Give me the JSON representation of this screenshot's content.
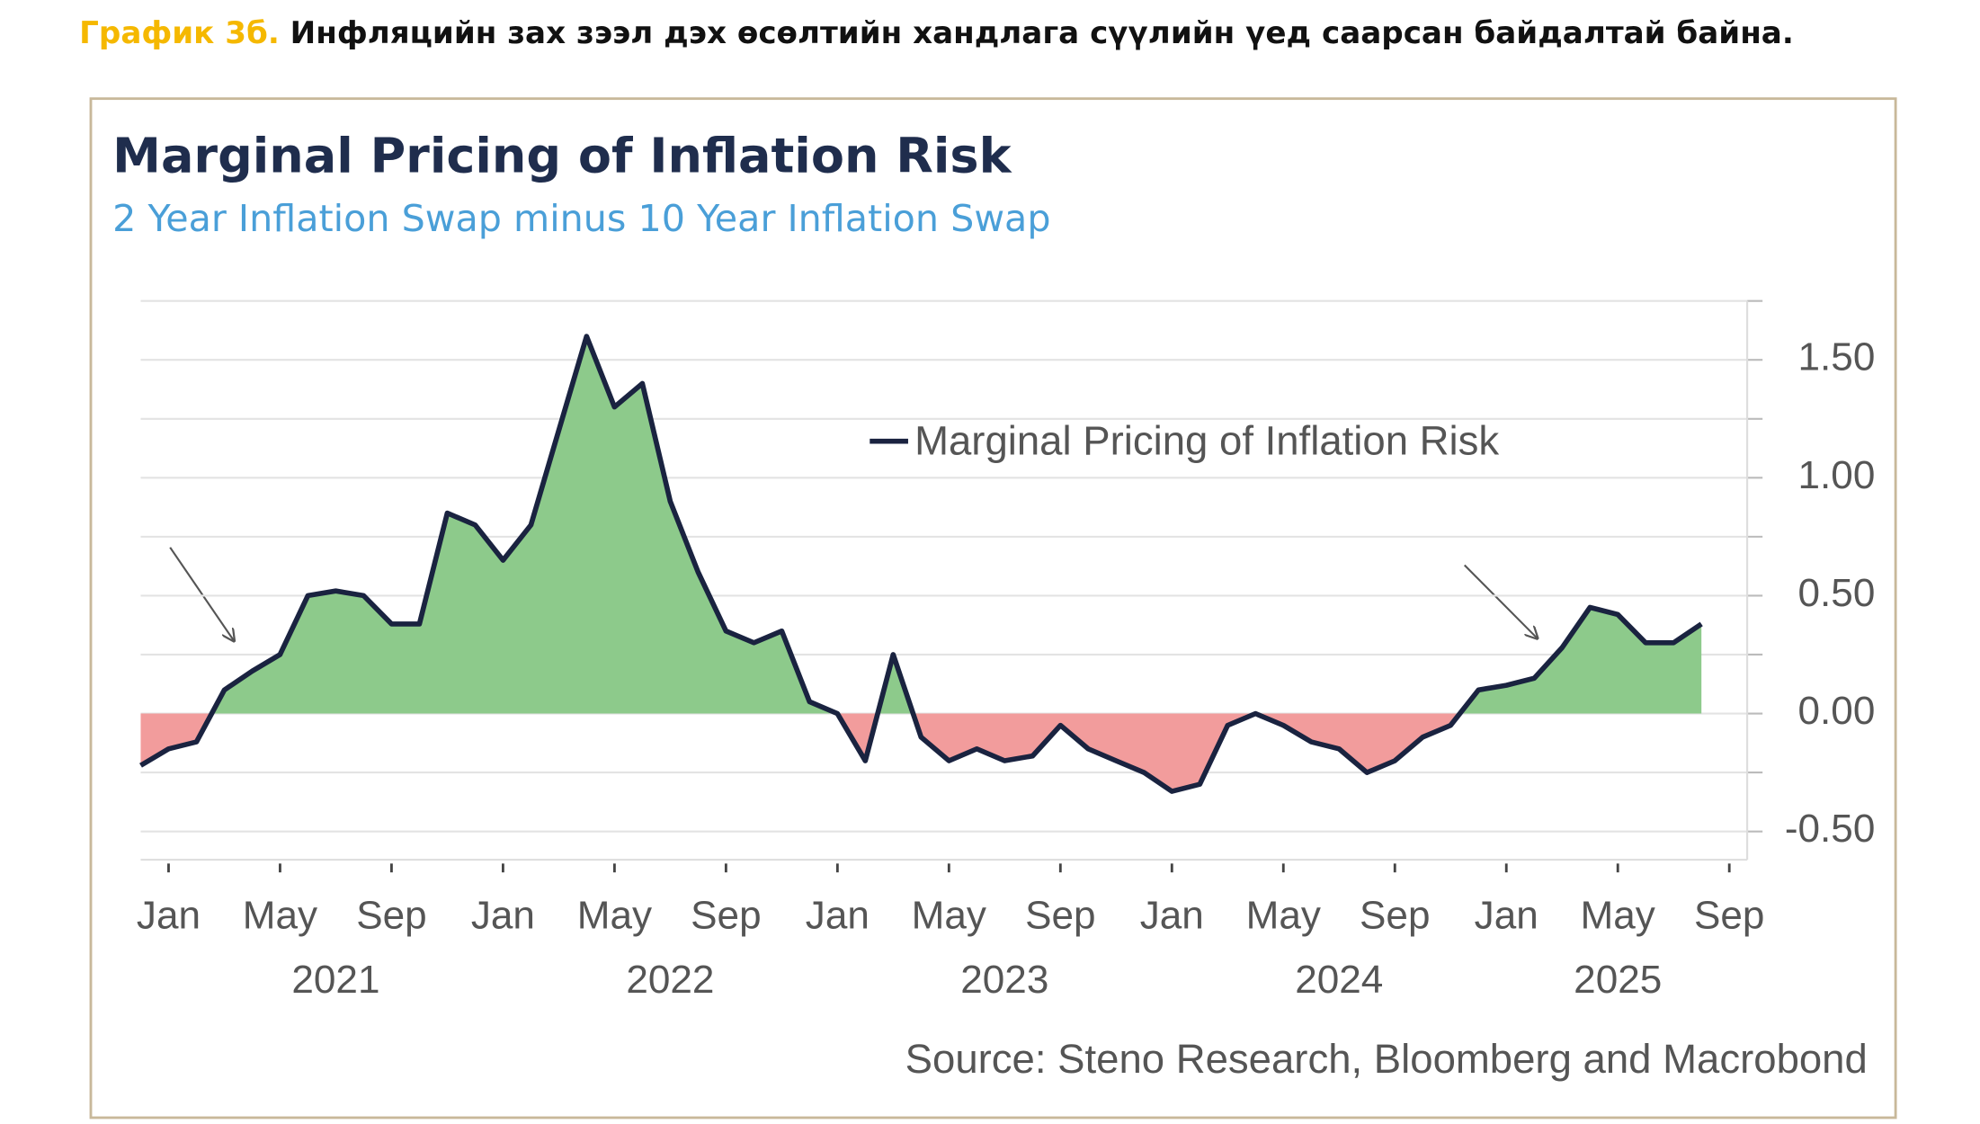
{
  "heading": {
    "label": "График 3б.",
    "text": "Инфляцийн зах зээл дэх өсөлтийн хандлага сүүлийн үед саарсан байдалтай байна."
  },
  "chart_data": {
    "type": "line",
    "title": "Marginal Pricing of Inflation Risk",
    "subtitle": "2 Year Inflation Swap minus 10 Year Inflation Swap",
    "source": "Source: Steno Research, Bloomberg and Macrobond",
    "x": [
      "2020-12",
      "2021-01",
      "2021-02",
      "2021-03",
      "2021-04",
      "2021-05",
      "2021-06",
      "2021-07",
      "2021-08",
      "2021-09",
      "2021-10",
      "2021-11",
      "2021-12",
      "2022-01",
      "2022-02",
      "2022-03",
      "2022-04",
      "2022-05",
      "2022-06",
      "2022-07",
      "2022-08",
      "2022-09",
      "2022-10",
      "2022-11",
      "2022-12",
      "2023-01",
      "2023-02",
      "2023-03",
      "2023-04",
      "2023-05",
      "2023-06",
      "2023-07",
      "2023-08",
      "2023-09",
      "2023-10",
      "2023-11",
      "2023-12",
      "2024-01",
      "2024-02",
      "2024-03",
      "2024-04",
      "2024-05",
      "2024-06",
      "2024-07",
      "2024-08",
      "2024-09",
      "2024-10",
      "2024-11",
      "2024-12",
      "2025-01",
      "2025-02",
      "2025-03",
      "2025-04",
      "2025-05",
      "2025-06",
      "2025-07",
      "2025-08"
    ],
    "series": [
      {
        "name": "Marginal Pricing of Inflation Risk",
        "color": "#1a2340",
        "values": [
          -0.22,
          -0.15,
          -0.12,
          0.1,
          0.18,
          0.25,
          0.5,
          0.52,
          0.5,
          0.38,
          0.38,
          0.85,
          0.8,
          0.65,
          0.8,
          1.2,
          1.6,
          1.3,
          1.4,
          0.9,
          0.6,
          0.35,
          0.3,
          0.35,
          0.05,
          0.0,
          -0.2,
          0.25,
          -0.1,
          -0.2,
          -0.15,
          -0.2,
          -0.18,
          -0.05,
          -0.15,
          -0.2,
          -0.25,
          -0.33,
          -0.3,
          -0.05,
          0.0,
          -0.05,
          -0.12,
          -0.15,
          -0.25,
          -0.2,
          -0.1,
          -0.05,
          0.1,
          0.12,
          0.15,
          0.28,
          0.45,
          0.42,
          0.3,
          0.3,
          0.38
        ]
      }
    ],
    "positive_color": "#8dca8b",
    "negative_color": "#f29c9c",
    "xlim": [
      "2020-12",
      "2025-09"
    ],
    "xticks": [
      {
        "value": "2021-01",
        "label": "Jan"
      },
      {
        "value": "2021-05",
        "label": "May"
      },
      {
        "value": "2021-09",
        "label": "Sep"
      },
      {
        "value": "2022-01",
        "label": "Jan"
      },
      {
        "value": "2022-05",
        "label": "May"
      },
      {
        "value": "2022-09",
        "label": "Sep"
      },
      {
        "value": "2023-01",
        "label": "Jan"
      },
      {
        "value": "2023-05",
        "label": "May"
      },
      {
        "value": "2023-09",
        "label": "Sep"
      },
      {
        "value": "2024-01",
        "label": "Jan"
      },
      {
        "value": "2024-05",
        "label": "May"
      },
      {
        "value": "2024-09",
        "label": "Sep"
      },
      {
        "value": "2025-01",
        "label": "Jan"
      },
      {
        "value": "2025-05",
        "label": "May"
      },
      {
        "value": "2025-09",
        "label": "Sep"
      }
    ],
    "year_labels": [
      {
        "value": "2021-07",
        "label": "2021"
      },
      {
        "value": "2022-07",
        "label": "2022"
      },
      {
        "value": "2023-07",
        "label": "2023"
      },
      {
        "value": "2024-07",
        "label": "2024"
      },
      {
        "value": "2025-05",
        "label": "2025"
      }
    ],
    "ylim": [
      -0.62,
      1.75
    ],
    "yticks": [
      {
        "value": -0.5,
        "label": "-0.50"
      },
      {
        "value": 0,
        "label": "0.00"
      },
      {
        "value": 0.5,
        "label": "0.50"
      },
      {
        "value": 1,
        "label": "1.00"
      },
      {
        "value": 1.5,
        "label": "1.50"
      }
    ],
    "minor_yticks": [
      -0.25,
      0.25,
      0.75,
      1.25,
      1.75
    ],
    "grid": true
  }
}
